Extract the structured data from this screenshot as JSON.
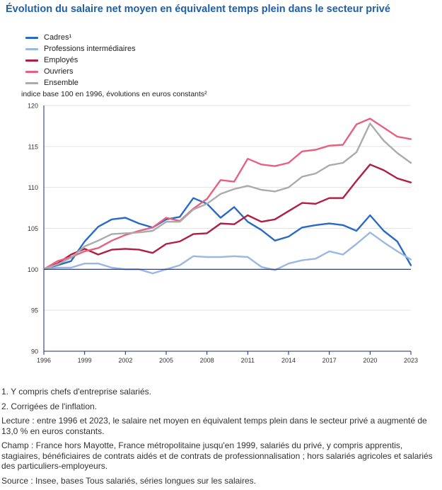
{
  "title": "Évolution du salaire net moyen en équivalent temps plein dans le secteur privé",
  "notes": {
    "note1": "1. Y compris chefs d'entreprise salariés.",
    "note2": "2. Corrigées de l'inflation.",
    "lecture": "Lecture : entre 1996 et 2023, le salaire net moyen en équivalent temps plein dans le secteur privé a augmenté de 13,0 % en euros constants.",
    "champ": "Champ : France hors Mayotte, France métropolitaine jusqu'en 1999, salariés du privé, y compris apprentis, stagiaires, bénéficiaires de contrats aidés et de contrats de professionnalisation ; hors salariés agricoles et salariés des particuliers-employeurs.",
    "source": "Source : Insee, bases Tous salariés, séries longues sur les salaires."
  },
  "chart_data": {
    "type": "line",
    "title": "Évolution du salaire net moyen en équivalent temps plein dans le secteur privé",
    "ylabel": "indice base 100 en 1996, évolutions en euros constants²",
    "xlabel": "",
    "x": [
      1996,
      1997,
      1998,
      1999,
      2000,
      2001,
      2002,
      2003,
      2004,
      2005,
      2006,
      2007,
      2008,
      2009,
      2010,
      2011,
      2012,
      2013,
      2014,
      2015,
      2016,
      2017,
      2018,
      2019,
      2020,
      2021,
      2022,
      2023
    ],
    "xticks": [
      1996,
      1999,
      2002,
      2005,
      2008,
      2011,
      2014,
      2017,
      2020,
      2023
    ],
    "yticks": [
      90,
      95,
      100,
      105,
      110,
      115,
      120
    ],
    "ylim": [
      90,
      120
    ],
    "xlim": [
      1996,
      2023
    ],
    "reference_line": 100,
    "legend_position": "top-left",
    "grid": "horizontal",
    "series": [
      {
        "name": "Cadres¹",
        "color": "#2a6ac4",
        "values": [
          100,
          100.5,
          101,
          103.4,
          105.2,
          106.1,
          106.3,
          105.6,
          105.1,
          106.1,
          106.4,
          108.7,
          108.0,
          106.3,
          107.6,
          105.8,
          104.8,
          103.5,
          104.0,
          105.1,
          105.4,
          105.6,
          105.4,
          104.7,
          106.6,
          104.7,
          103.4,
          100.5
        ]
      },
      {
        "name": "Professions intermédiaires",
        "color": "#9ab8e2",
        "values": [
          100,
          100.2,
          100.2,
          100.7,
          100.7,
          100.2,
          100.0,
          100.0,
          99.5,
          100.0,
          100.5,
          101.6,
          101.5,
          101.5,
          101.6,
          101.5,
          100.3,
          99.9,
          100.7,
          101.1,
          101.3,
          102.2,
          101.8,
          103.1,
          104.5,
          103.3,
          102.2,
          101.2
        ]
      },
      {
        "name": "Employés",
        "color": "#b01e42",
        "values": [
          100,
          100.7,
          101.8,
          102.5,
          101.8,
          102.4,
          102.5,
          102.4,
          102.0,
          103.1,
          103.4,
          104.3,
          104.4,
          105.6,
          105.5,
          106.6,
          105.8,
          106.1,
          107.1,
          108.1,
          108.0,
          108.7,
          108.7,
          110.8,
          112.8,
          112.1,
          111.1,
          110.6
        ]
      },
      {
        "name": "Ouvriers",
        "color": "#e8607e",
        "values": [
          100,
          101.0,
          101.5,
          102.2,
          102.6,
          103.5,
          104.2,
          104.7,
          105.1,
          106.3,
          105.9,
          107.4,
          108.6,
          110.9,
          110.7,
          113.5,
          112.8,
          112.6,
          113.0,
          114.4,
          114.6,
          115.1,
          115.2,
          117.7,
          118.4,
          117.3,
          116.2,
          115.9
        ]
      },
      {
        "name": "Ensemble",
        "color": "#ababab",
        "values": [
          100,
          100.6,
          101.4,
          102.8,
          103.5,
          104.3,
          104.4,
          104.5,
          104.7,
          105.8,
          105.8,
          107.3,
          108.0,
          109.2,
          109.8,
          110.2,
          109.7,
          109.5,
          110.0,
          111.3,
          111.7,
          112.7,
          113.0,
          114.3,
          117.8,
          115.7,
          114.2,
          113.0
        ]
      }
    ]
  }
}
